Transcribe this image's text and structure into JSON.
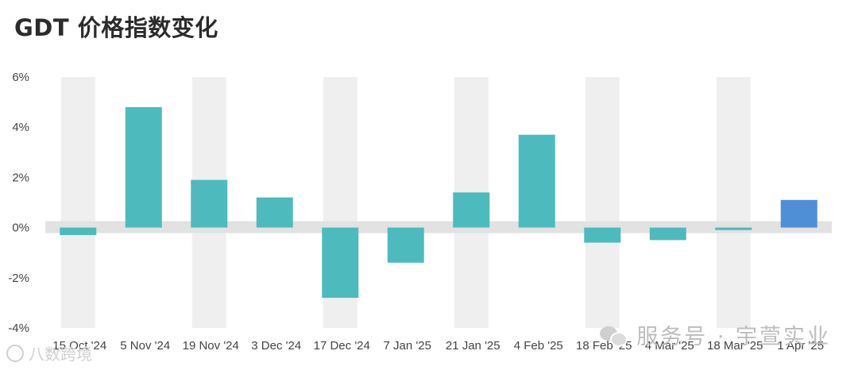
{
  "chart_data": {
    "type": "bar",
    "title": "GDT 价格指数变化",
    "categories": [
      "15 Oct '24",
      "5 Nov '24",
      "19 Nov '24",
      "3 Dec '24",
      "17 Dec '24",
      "7 Jan '25",
      "21 Jan '25",
      "4 Feb '25",
      "18 Feb '25",
      "4 Mar '25",
      "18 Mar '25",
      "1 Apr '25"
    ],
    "values": [
      -0.3,
      4.8,
      1.9,
      1.2,
      -2.8,
      -1.4,
      1.4,
      3.7,
      -0.6,
      -0.5,
      -0.1,
      1.1
    ],
    "ylim": [
      -4,
      6
    ],
    "yticks": [
      6,
      4,
      2,
      0,
      -2,
      -4
    ],
    "ytick_labels": [
      "6%",
      "4%",
      "2%",
      "0%",
      "-2%",
      "-4%"
    ],
    "xlabel": "",
    "ylabel": "",
    "colors": {
      "bar": "#4dbbbd",
      "highlight_bar": "#4f8fd6",
      "column_band": "#efefef",
      "zero_band": "#e2e2e2"
    },
    "highlight_index": 11,
    "grid": false
  },
  "watermark": {
    "text": "服务号 · 宇萱实业",
    "icon": "wechat-icon",
    "source_text": "八数跨境",
    "source_icon": "circle-logo-icon"
  }
}
